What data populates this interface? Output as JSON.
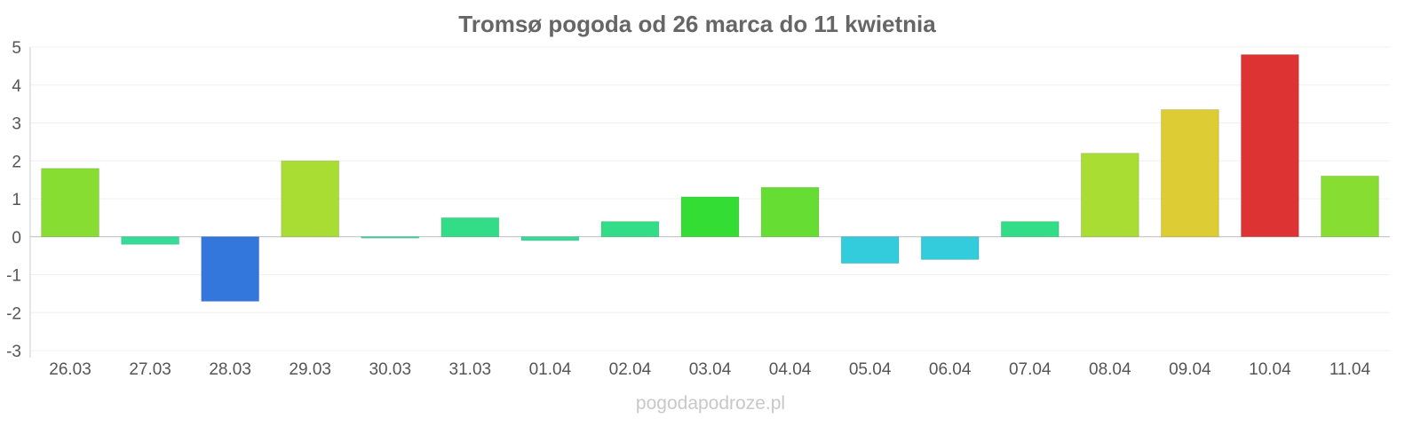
{
  "chart_data": {
    "type": "bar",
    "title": "Tromsø pogoda od 26 marca do 11 kwietnia",
    "xlabel": "",
    "ylabel": "",
    "categories": [
      "26.03",
      "27.03",
      "28.03",
      "29.03",
      "30.03",
      "31.03",
      "01.04",
      "02.04",
      "03.04",
      "04.04",
      "05.04",
      "06.04",
      "07.04",
      "08.04",
      "09.04",
      "10.04",
      "11.04"
    ],
    "values": [
      1.8,
      -0.2,
      -1.7,
      2.0,
      -0.03,
      0.5,
      -0.1,
      0.4,
      1.05,
      1.3,
      -0.7,
      -0.6,
      0.4,
      2.2,
      3.35,
      4.8,
      1.6
    ],
    "colors": [
      "#88dd33",
      "#33dd99",
      "#3377dd",
      "#aadd33",
      "#33dd99",
      "#33dd88",
      "#33dd99",
      "#33dd88",
      "#33dd33",
      "#66dd33",
      "#33ccdd",
      "#33ccdd",
      "#33dd88",
      "#aadd33",
      "#ddcc33",
      "#dd3333",
      "#88dd33"
    ],
    "ylim": [
      -3,
      5
    ],
    "yticks": [
      "-3",
      "-2",
      "-1",
      "0",
      "1",
      "2",
      "3",
      "4",
      "5"
    ],
    "grid": true,
    "legend": "none"
  },
  "watermark": "pogodapodroze.pl"
}
